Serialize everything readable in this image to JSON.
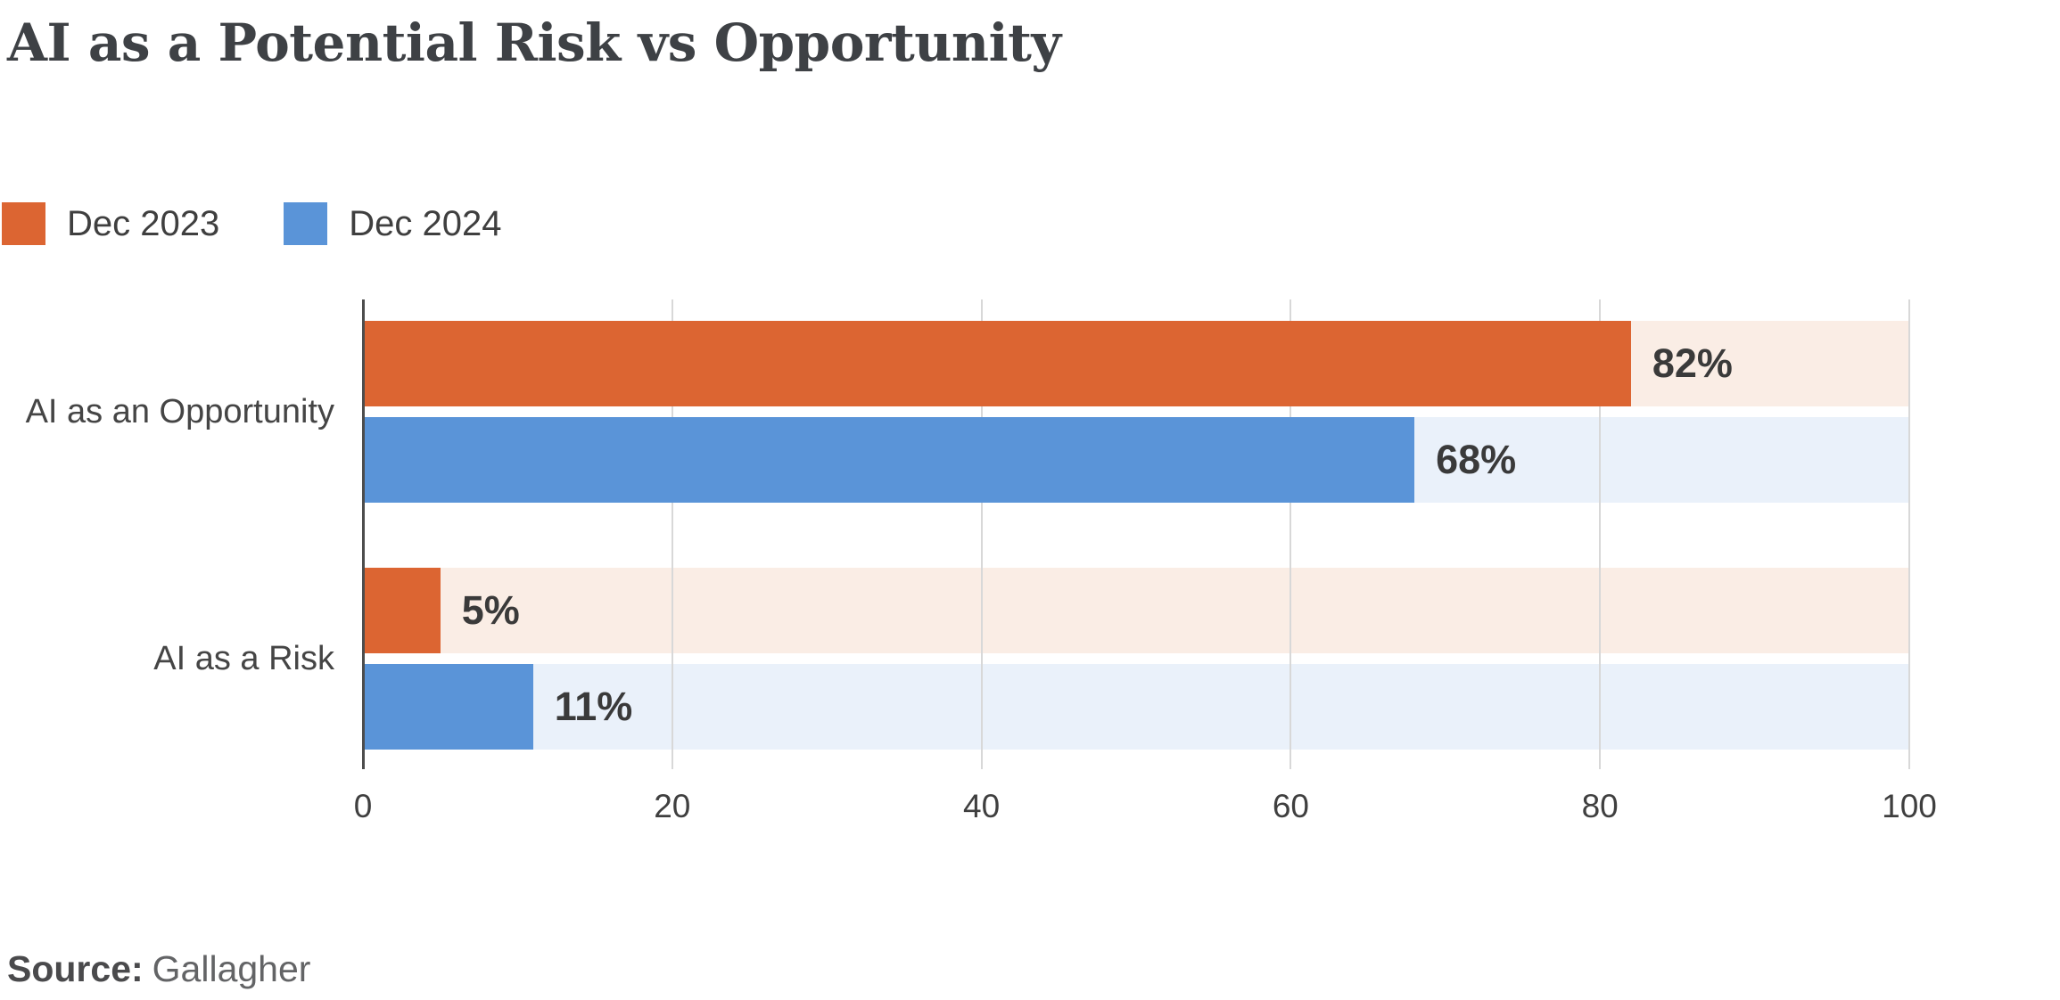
{
  "title": "AI as a Potential Risk vs Opportunity",
  "legend": [
    {
      "label": "Dec 2023",
      "color": "#dc6532"
    },
    {
      "label": "Dec 2024",
      "color": "#5a94d8"
    }
  ],
  "source": {
    "prefix": "Source:",
    "name": "Gallagher"
  },
  "chart_data": {
    "type": "bar",
    "orientation": "horizontal",
    "title": "AI as a Potential Risk vs Opportunity",
    "categories": [
      "AI as an Opportunity",
      "AI as a Risk"
    ],
    "series": [
      {
        "name": "Dec 2023",
        "values": [
          82,
          5
        ],
        "color": "#dc6532",
        "track_color": "#faede5"
      },
      {
        "name": "Dec 2024",
        "values": [
          68,
          11
        ],
        "color": "#5a94d8",
        "track_color": "#eaf1fa"
      }
    ],
    "value_suffix": "%",
    "xlim": [
      0,
      100
    ],
    "xticks": [
      0,
      20,
      40,
      60,
      80,
      100
    ],
    "grid": true,
    "gridline_color": "#d8d8d8",
    "axis_color": "#4d4d4d",
    "legend_position": "top-left",
    "source": "Gallagher"
  }
}
